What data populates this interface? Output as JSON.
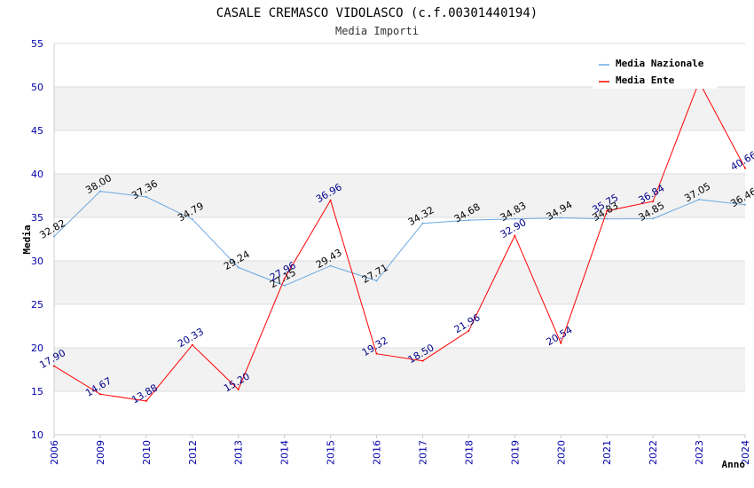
{
  "chart_data": {
    "type": "line",
    "title": "CASALE CREMASCO VIDOLASCO (c.f.00301440194)",
    "subtitle": "Media Importi",
    "xlabel": "Anno",
    "ylabel": "Media",
    "ylim": [
      10,
      55
    ],
    "yticks": [
      10,
      15,
      20,
      25,
      30,
      35,
      40,
      45,
      50,
      55
    ],
    "categories": [
      "2006",
      "2009",
      "2010",
      "2012",
      "2013",
      "2014",
      "2015",
      "2016",
      "2017",
      "2018",
      "2019",
      "2020",
      "2021",
      "2022",
      "2023",
      "2024"
    ],
    "series": [
      {
        "name": "Media Nazionale",
        "color": "#6aa8e0",
        "values": [
          32.82,
          38.0,
          37.36,
          34.79,
          29.24,
          27.15,
          29.43,
          27.71,
          34.32,
          34.68,
          34.83,
          34.94,
          34.83,
          34.85,
          37.05,
          36.46
        ],
        "labels": [
          "32.82",
          "38.00",
          "37.36",
          "34.79",
          "29.24",
          "27.15",
          "29.43",
          "27.71",
          "34.32",
          "34.68",
          "34.83",
          "34.94",
          "34.83",
          "34.85",
          "37.05",
          "36.46"
        ]
      },
      {
        "name": "Media Ente",
        "color": "#ff0000",
        "values": [
          17.9,
          14.67,
          13.88,
          20.33,
          15.2,
          27.96,
          36.96,
          19.32,
          18.5,
          21.96,
          32.9,
          20.54,
          35.75,
          36.84,
          50.6,
          40.66
        ],
        "labels": [
          "17.90",
          "14.67",
          "13.88",
          "20.33",
          "15.20",
          "27.96",
          "36.96",
          "19.32",
          "18.50",
          "21.96",
          "32.90",
          "20.54",
          "35.75",
          "36.84",
          "",
          "40.66"
        ]
      }
    ],
    "legend": "top-right",
    "grid": true
  }
}
